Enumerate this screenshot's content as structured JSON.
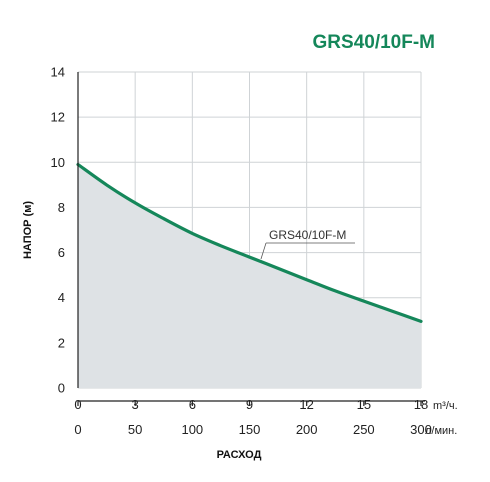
{
  "chart_data": {
    "type": "area",
    "title": "GRS40/10F-M",
    "ylabel": "НАПОР (м)",
    "xlabel": "РАСХОД",
    "x_unit": "m³/ч.",
    "x2_unit": "л/мин.",
    "xlim": [
      0,
      18
    ],
    "ylim": [
      0,
      14
    ],
    "x_ticks": [
      0,
      3,
      6,
      9,
      12,
      15,
      18
    ],
    "x2_ticks": [
      0,
      50,
      100,
      150,
      200,
      250,
      300
    ],
    "y_ticks": [
      0,
      2,
      4,
      6,
      8,
      10,
      12,
      14
    ],
    "grid": true,
    "series": [
      {
        "name": "GRS40/10F-M",
        "x": [
          0,
          1.5,
          3,
          4.5,
          6,
          7.5,
          9,
          10.5,
          12,
          13.5,
          15,
          16.5,
          18
        ],
        "y": [
          9.9,
          9.0,
          8.2,
          7.5,
          6.85,
          6.3,
          5.8,
          5.3,
          4.8,
          4.3,
          3.85,
          3.4,
          2.95
        ]
      }
    ],
    "annotation": "GRS40/10F-M",
    "colors": {
      "line": "#15875a",
      "fill": "#dee2e5",
      "grid": "#cfd3d6",
      "title": "#15875a"
    }
  }
}
